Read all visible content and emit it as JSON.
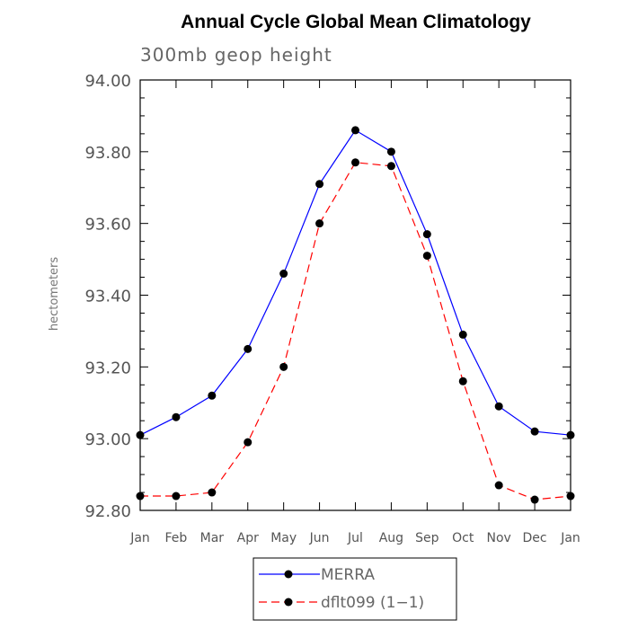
{
  "chart_data": {
    "type": "line",
    "title": "Annual Cycle Global Mean Climatology",
    "subtitle": "300mb geop height",
    "xlabel": "",
    "ylabel": "hectometers",
    "categories": [
      "Jan",
      "Feb",
      "Mar",
      "Apr",
      "May",
      "Jun",
      "Jul",
      "Aug",
      "Sep",
      "Oct",
      "Nov",
      "Dec",
      "Jan"
    ],
    "ylim": [
      92.8,
      94.0
    ],
    "yticks": [
      "92.80",
      "93.00",
      "93.20",
      "93.40",
      "93.60",
      "93.80",
      "94.00"
    ],
    "series": [
      {
        "name": "MERRA",
        "color": "#0000ff",
        "dash": "solid",
        "values": [
          93.01,
          93.06,
          93.12,
          93.25,
          93.46,
          93.71,
          93.86,
          93.8,
          93.57,
          93.29,
          93.09,
          93.02,
          93.01
        ]
      },
      {
        "name": "dflt099 (1-1)",
        "color": "#ff0000",
        "dash": "dashed",
        "values": [
          92.84,
          92.84,
          92.85,
          92.99,
          93.2,
          93.6,
          93.77,
          93.76,
          93.51,
          93.16,
          92.87,
          92.83,
          92.84
        ]
      }
    ],
    "legend": [
      "MERRA",
      "dflt099 (1−1)"
    ],
    "legend_position": "bottom-center",
    "grid": false
  }
}
